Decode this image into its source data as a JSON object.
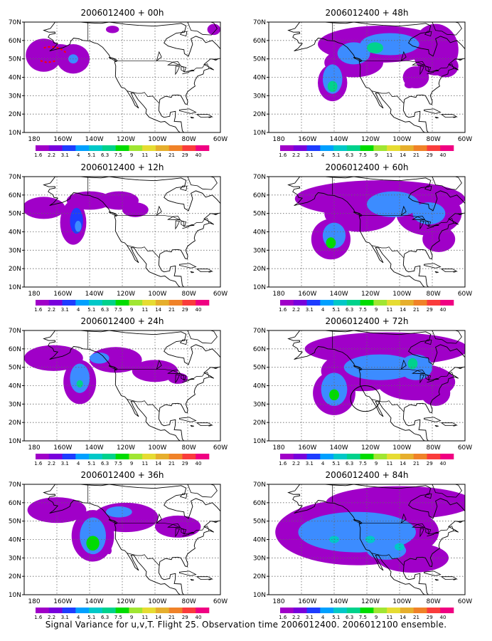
{
  "figure": {
    "footer": "Signal Variance for u,v,T. Flight 25. Observation time 2006012400. 2006012100 ensemble.",
    "y_axis_labels": [
      "70N",
      "60N",
      "50N",
      "40N",
      "30N",
      "20N",
      "10N"
    ],
    "x_axis_labels": [
      "180",
      "160W",
      "140W",
      "120W",
      "100W",
      "80W",
      "60W"
    ],
    "legend_labels": [
      "1.6",
      "2.2",
      "3.1",
      "4",
      "5.1",
      "6.3",
      "7.5",
      "9",
      "11",
      "14",
      "21",
      "29",
      "40"
    ],
    "legend_colors": [
      "#a000c8",
      "#7800dc",
      "#1e3cff",
      "#00a0ff",
      "#00c8c8",
      "#00d28c",
      "#00dc00",
      "#a0e632",
      "#e6dc32",
      "#e6af2d",
      "#f08228",
      "#fa3c3c",
      "#f00082"
    ],
    "panels": [
      {
        "title": "2006012400 + 00h"
      },
      {
        "title": "2006012400 + 48h"
      },
      {
        "title": "2006012400 + 12h"
      },
      {
        "title": "2006012400 + 60h"
      },
      {
        "title": "2006012400 + 24h"
      },
      {
        "title": "2006012400 + 72h"
      },
      {
        "title": "2006012400 + 36h"
      },
      {
        "title": "2006012400 + 84h"
      }
    ]
  }
}
